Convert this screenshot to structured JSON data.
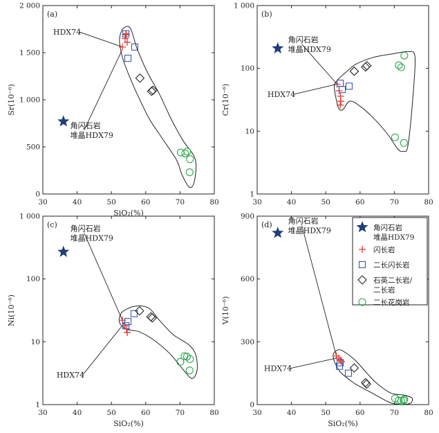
{
  "chart_data": [
    {
      "type": "scatter",
      "panel_label": "(a)",
      "xlabel": "SiO₂(%)",
      "ylabel": "Sr(10⁻⁶)",
      "xlim": [
        30,
        80
      ],
      "ylim": [
        0,
        2000
      ],
      "yscale": "linear",
      "xticks": [
        "30",
        "40",
        "50",
        "60",
        "70",
        "80"
      ],
      "yticks": [
        {
          "value": 0,
          "label": "0"
        },
        {
          "value": 500,
          "label": "500"
        },
        {
          "value": 1000,
          "label": "1 000"
        },
        {
          "value": 1500,
          "label": "1 500"
        },
        {
          "value": 2000,
          "label": "2 000"
        }
      ],
      "series": [
        {
          "name": "角闪石岩堆晶HDX79",
          "marker": "star",
          "color": "#1f3f7a",
          "points": [
            [
              36,
              770
            ]
          ]
        },
        {
          "name": "闪长岩",
          "marker": "plus",
          "color": "#e8352b",
          "points": [
            [
              53.2,
              1560
            ],
            [
              54,
              1650
            ],
            [
              54.3,
              1690
            ],
            [
              54.6,
              1610
            ],
            [
              54.2,
              1700
            ]
          ]
        },
        {
          "name": "二长闪长岩",
          "marker": "square",
          "color": "#3b56a8",
          "points": [
            [
              54.2,
              1700
            ],
            [
              54.8,
              1440
            ],
            [
              56.8,
              1560
            ]
          ]
        },
        {
          "name": "石英二长岩/二长岩",
          "marker": "diamond",
          "color": "#222222",
          "points": [
            [
              58.3,
              1230
            ],
            [
              61.7,
              1090
            ],
            [
              62.1,
              1100
            ]
          ]
        },
        {
          "name": "二长花岗岩",
          "marker": "circle",
          "color": "#2aa84a",
          "points": [
            [
              70.2,
              440
            ],
            [
              71.5,
              430
            ],
            [
              72.1,
              450
            ],
            [
              72.9,
              370
            ],
            [
              72.8,
              230
            ]
          ]
        }
      ],
      "annotations": [
        {
          "text": "HDX74",
          "tx": 33,
          "ty": 1690,
          "line_to": [
            53.2,
            1560
          ]
        },
        {
          "text": "角闪石岩",
          "line2": "堆晶HDX79",
          "tx": 38,
          "ty": 700,
          "line_to": [
            53,
            1520
          ]
        }
      ]
    },
    {
      "type": "scatter",
      "panel_label": "(b)",
      "xlabel": "",
      "ylabel": "Cr(10⁻⁶)",
      "xlim": [
        30,
        80
      ],
      "ylim": [
        1,
        1000
      ],
      "yscale": "log",
      "xticks": [
        "30",
        "40",
        "50",
        "60",
        "70",
        "80"
      ],
      "yticks": [
        {
          "value": 1,
          "label": "1"
        },
        {
          "value": 10,
          "label": "10"
        },
        {
          "value": 100,
          "label": "100"
        },
        {
          "value": 1000,
          "label": "1 000"
        }
      ],
      "series": [
        {
          "name": "角闪石岩堆晶HDX79",
          "marker": "star",
          "color": "#1f3f7a",
          "points": [
            [
              36,
              208
            ]
          ]
        },
        {
          "name": "闪长岩",
          "marker": "plus",
          "color": "#e8352b",
          "points": [
            [
              53.3,
              56
            ],
            [
              53.9,
              44
            ],
            [
              54.3,
              36
            ],
            [
              54.4,
              30
            ],
            [
              54.2,
              26
            ]
          ]
        },
        {
          "name": "二长闪长岩",
          "marker": "square",
          "color": "#3b56a8",
          "points": [
            [
              54.2,
              58
            ],
            [
              54.8,
              46
            ],
            [
              56.8,
              52
            ]
          ]
        },
        {
          "name": "石英二长岩/二长岩",
          "marker": "diamond",
          "color": "#222222",
          "points": [
            [
              58.3,
              90
            ],
            [
              61.6,
              105
            ],
            [
              62,
              110
            ]
          ]
        },
        {
          "name": "二长花岗岩",
          "marker": "circle",
          "color": "#2aa84a",
          "points": [
            [
              71.3,
              112
            ],
            [
              72,
              104
            ],
            [
              72.9,
              160
            ],
            [
              70.2,
              8
            ],
            [
              72.8,
              6.5
            ]
          ]
        }
      ],
      "annotations": [
        {
          "text": "角闪石岩",
          "line2": "堆晶HDX79",
          "tx": 39,
          "ty": 260,
          "line_to": [
            53.3,
            56
          ]
        },
        {
          "text": "HDX74",
          "tx": 33,
          "ty": 35,
          "line_to": [
            53.3,
            56
          ]
        }
      ]
    },
    {
      "type": "scatter",
      "panel_label": "(c)",
      "xlabel": "SiO₂(%)",
      "ylabel": "Ni(10⁻⁶)",
      "xlim": [
        30,
        80
      ],
      "ylim": [
        1,
        1000
      ],
      "yscale": "log",
      "xticks": [
        "30",
        "40",
        "50",
        "60",
        "70",
        "80"
      ],
      "yticks": [
        {
          "value": 1,
          "label": "1"
        },
        {
          "value": 10,
          "label": "10"
        },
        {
          "value": 100,
          "label": "100"
        },
        {
          "value": 1000,
          "label": "1 000"
        }
      ],
      "series": [
        {
          "name": "角闪石岩堆晶HDX79",
          "marker": "star",
          "color": "#1f3f7a",
          "points": [
            [
              36,
              270
            ]
          ]
        },
        {
          "name": "闪长岩",
          "marker": "plus",
          "color": "#e8352b",
          "points": [
            [
              53.2,
              22
            ],
            [
              53.9,
              18
            ],
            [
              54.4,
              16
            ],
            [
              54.6,
              14
            ]
          ]
        },
        {
          "name": "二长闪长岩",
          "marker": "square",
          "color": "#3b56a8",
          "points": [
            [
              54.2,
              18
            ],
            [
              54.8,
              21
            ],
            [
              56.6,
              28
            ]
          ]
        },
        {
          "name": "石英二长岩/二长岩",
          "marker": "diamond",
          "color": "#222222",
          "points": [
            [
              58.2,
              31
            ],
            [
              61.5,
              25
            ],
            [
              61.9,
              24
            ]
          ]
        },
        {
          "name": "二长花岗岩",
          "marker": "circle",
          "color": "#2aa84a",
          "points": [
            [
              70.1,
              4.8
            ],
            [
              71.3,
              5.9
            ],
            [
              72,
              5.8
            ],
            [
              72.9,
              5.3
            ],
            [
              72.8,
              3.5
            ]
          ]
        }
      ],
      "annotations": [
        {
          "text": "角闪石岩",
          "line2": "堆晶HDX79",
          "tx": 38,
          "ty": 580,
          "line_to": [
            53.2,
            22
          ]
        },
        {
          "text": "HDX74",
          "tx": 34,
          "ty": 2.7,
          "line_to": [
            53.8,
            20
          ]
        }
      ]
    },
    {
      "type": "scatter",
      "panel_label": "(d)",
      "xlabel": "SiO₂(%)",
      "ylabel": "V(10⁻⁶)",
      "xlim": [
        30,
        80
      ],
      "ylim": [
        0,
        900
      ],
      "yscale": "linear",
      "xticks": [
        "30",
        "40",
        "50",
        "60",
        "70",
        "80"
      ],
      "yticks": [
        {
          "value": 0,
          "label": "0"
        },
        {
          "value": 300,
          "label": "300"
        },
        {
          "value": 600,
          "label": "600"
        },
        {
          "value": 900,
          "label": "900"
        }
      ],
      "series": [
        {
          "name": "角闪石岩堆晶HDX79",
          "marker": "star",
          "color": "#1f3f7a",
          "points": [
            [
              36,
              820
            ]
          ]
        },
        {
          "name": "闪长岩",
          "marker": "plus",
          "color": "#e8352b",
          "points": [
            [
              53.1,
              232
            ],
            [
              53.8,
              222
            ],
            [
              54.3,
              212
            ],
            [
              54.6,
              205
            ]
          ]
        },
        {
          "name": "二长闪长岩",
          "marker": "square",
          "color": "#3b56a8",
          "points": [
            [
              54.2,
              200
            ],
            [
              54,
              183
            ],
            [
              56.6,
              150
            ]
          ]
        },
        {
          "name": "石英二长岩/二长岩",
          "marker": "diamond",
          "color": "#222222",
          "points": [
            [
              58.3,
              175
            ],
            [
              61.6,
              105
            ],
            [
              61.9,
              98
            ]
          ]
        },
        {
          "name": "二长花岗岩",
          "marker": "circle",
          "color": "#2aa84a",
          "points": [
            [
              70.2,
              30
            ],
            [
              71.3,
              20
            ],
            [
              72,
              18
            ],
            [
              72.9,
              25
            ],
            [
              72.7,
              20
            ]
          ]
        }
      ],
      "annotations": [
        {
          "text": "角闪石岩",
          "line2": "堆晶HDX79",
          "tx": 39,
          "ty": 865,
          "line_to": [
            53.1,
            232
          ]
        },
        {
          "text": "HDX74",
          "tx": 32,
          "ty": 160,
          "line_to": [
            53.1,
            222
          ]
        }
      ],
      "legend": {
        "placement": "top-right",
        "items": [
          {
            "marker": "star",
            "color": "#1f3f7a",
            "line1": "角闪石岩",
            "line2": "堆晶HDX79"
          },
          {
            "marker": "plus",
            "color": "#e8352b",
            "line1": "闪长岩",
            "line2": ""
          },
          {
            "marker": "square",
            "color": "#3b56a8",
            "line1": "二长闪长岩",
            "line2": ""
          },
          {
            "marker": "diamond",
            "color": "#222222",
            "line1": "石英二长岩/",
            "line2": "二长岩"
          },
          {
            "marker": "circle",
            "color": "#2aa84a",
            "line1": "二长花岗岩",
            "line2": ""
          }
        ]
      }
    }
  ]
}
